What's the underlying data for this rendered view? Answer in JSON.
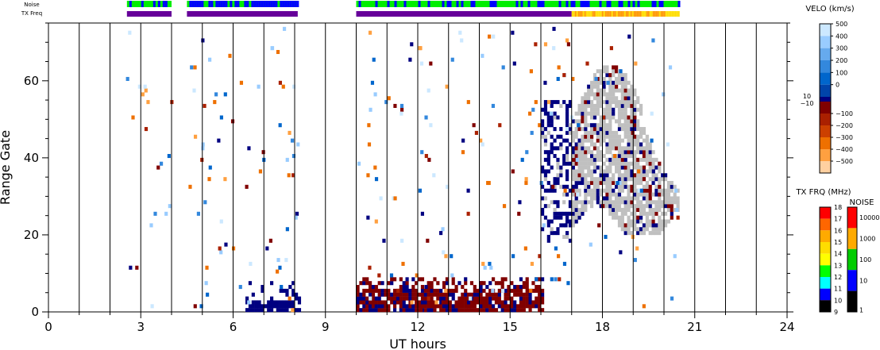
{
  "chart_data": {
    "type": "heatmap",
    "title": "",
    "xlabel": "UT hours",
    "ylabel": "Range Gate",
    "xlim": [
      0,
      24
    ],
    "ylim": [
      0,
      75
    ],
    "x_ticks": [
      0,
      3,
      6,
      9,
      12,
      15,
      18,
      21,
      24
    ],
    "y_ticks": [
      0,
      20,
      40,
      60
    ],
    "grid": "vertical lines every hour",
    "top_strips": {
      "noise_label": "Noise",
      "txfreq_label": "TX Freq",
      "noise_segments": [
        {
          "start": 2.55,
          "end": 4.0,
          "level": "mixed green/blue"
        },
        {
          "start": 4.5,
          "end": 8.1,
          "level": "mostly blue"
        },
        {
          "start": 10.0,
          "end": 20.5,
          "level": "mixed green/blue"
        }
      ],
      "txfreq_segments": [
        {
          "start": 2.55,
          "end": 4.0,
          "freq": "10-11 MHz"
        },
        {
          "start": 4.5,
          "end": 8.1,
          "freq": "10-11 MHz"
        },
        {
          "start": 10.0,
          "end": 17.0,
          "freq": "10-11 MHz"
        },
        {
          "start": 17.0,
          "end": 20.5,
          "freq": "14-15 MHz"
        }
      ]
    },
    "data_regions": [
      {
        "x": [
          6.4,
          8.1
        ],
        "gates": [
          0,
          8
        ],
        "value": "low velocity (blue)"
      },
      {
        "x": [
          10.0,
          16.0
        ],
        "gates": [
          0,
          8
        ],
        "value": "negative velocity (dark red) with blue"
      },
      {
        "x": [
          16.0,
          17.0
        ],
        "gates": [
          20,
          55
        ],
        "value": "blue"
      },
      {
        "x": [
          17.0,
          20.5
        ],
        "gates": [
          22,
          66
        ],
        "value": "ground scatter (grey)"
      }
    ],
    "velocity_colorbar": {
      "title": "VELO (km/s)",
      "labels": [
        "500",
        "400",
        "300",
        "200",
        "100",
        "0",
        "10",
        "−10",
        "−100",
        "−200",
        "−300",
        "−400",
        "−500"
      ],
      "colors_top_to_bottom": [
        "#cce8ff",
        "#99ccff",
        "#66aaee",
        "#3388dd",
        "#0066cc",
        "#0044aa",
        "#000080",
        "#800000",
        "#aa2000",
        "#cc4000",
        "#ee7000",
        "#ffa040",
        "#ffd0a0"
      ]
    },
    "txfreq_colorbar": {
      "title": "TX FRQ (MHz)",
      "labels": [
        "18",
        "17",
        "16",
        "15",
        "14",
        "13",
        "12",
        "11",
        "10",
        "9"
      ],
      "colors_top_to_bottom": [
        "#ff0000",
        "#ff6600",
        "#ffaa00",
        "#ffdd00",
        "#ffff00",
        "#00ff00",
        "#00ffff",
        "#0000ff",
        "#660099",
        "#000000"
      ]
    },
    "noise_colorbar": {
      "title": "NOISE",
      "labels": [
        "10000",
        "1000",
        "100",
        "10",
        "1"
      ],
      "colors_top_to_bottom": [
        "#ff0000",
        "#ffaa00",
        "#00cc00",
        "#0000ff",
        "#000000"
      ]
    }
  }
}
